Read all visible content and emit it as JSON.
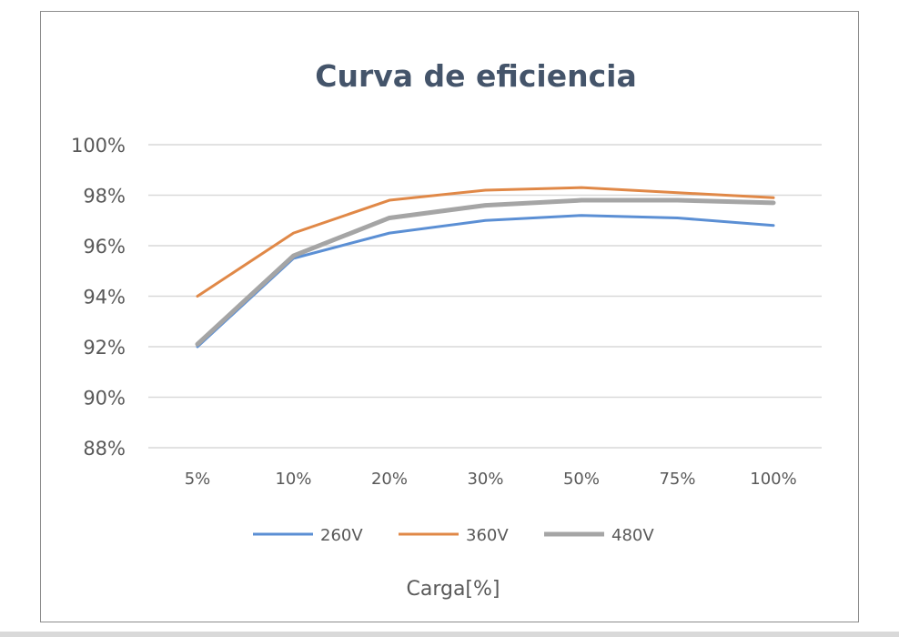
{
  "chart_data": {
    "type": "line",
    "title": "Curva de eficiencia",
    "xlabel": "Carga[%]",
    "ylabel": "",
    "categories": [
      "5%",
      "10%",
      "20%",
      "30%",
      "50%",
      "75%",
      "100%"
    ],
    "ylim": [
      88,
      100
    ],
    "yticks": [
      88,
      90,
      92,
      94,
      96,
      98,
      100
    ],
    "ytick_labels": [
      "88%",
      "90%",
      "92%",
      "94%",
      "96%",
      "98%",
      "100%"
    ],
    "grid": true,
    "legend_position": "bottom",
    "series": [
      {
        "name": "260V",
        "color": "#5b8fd4",
        "values": [
          92.0,
          95.5,
          96.5,
          97.0,
          97.2,
          97.1,
          96.8
        ]
      },
      {
        "name": "360V",
        "color": "#e08847",
        "values": [
          94.0,
          96.5,
          97.8,
          98.2,
          98.3,
          98.1,
          97.9
        ]
      },
      {
        "name": "480V",
        "color": "#a5a5a5",
        "values": [
          92.1,
          95.6,
          97.1,
          97.6,
          97.8,
          97.8,
          97.7
        ]
      }
    ]
  }
}
